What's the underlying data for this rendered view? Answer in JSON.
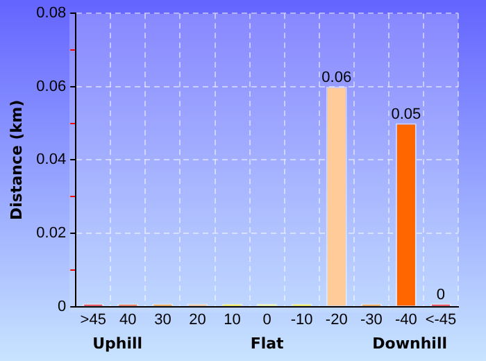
{
  "chart_data": {
    "type": "bar",
    "ylabel": "Distance (km)",
    "categories": [
      ">45",
      "40",
      "30",
      "20",
      "10",
      "0",
      "-10",
      "-20",
      "-30",
      "-40",
      "<-45"
    ],
    "values": [
      0,
      0,
      0,
      0,
      0,
      0,
      0,
      0.06,
      0,
      0.05,
      0
    ],
    "colors": [
      "#ff0000",
      "#ff4400",
      "#ff8800",
      "#ffbb66",
      "#ffee00",
      "#ffff66",
      "#ffee00",
      "#ffcc99",
      "#ff8800",
      "#ff6600",
      "#ff0000"
    ],
    "value_labels": [
      null,
      null,
      null,
      null,
      null,
      null,
      null,
      "0.06",
      null,
      "0.05",
      "0"
    ],
    "ylim": [
      0,
      0.08
    ],
    "yticks": [
      0,
      {
        "value": 0.01,
        "label": null
      },
      0.02,
      {
        "value": 0.03,
        "label": null
      },
      0.04,
      {
        "value": 0.05,
        "label": null
      },
      0.06,
      {
        "value": 0.07,
        "label": null
      },
      0.08
    ],
    "grid": true,
    "line_style": "dashed",
    "annotations": [
      "Uphill",
      "Flat",
      "Downhill"
    ]
  }
}
